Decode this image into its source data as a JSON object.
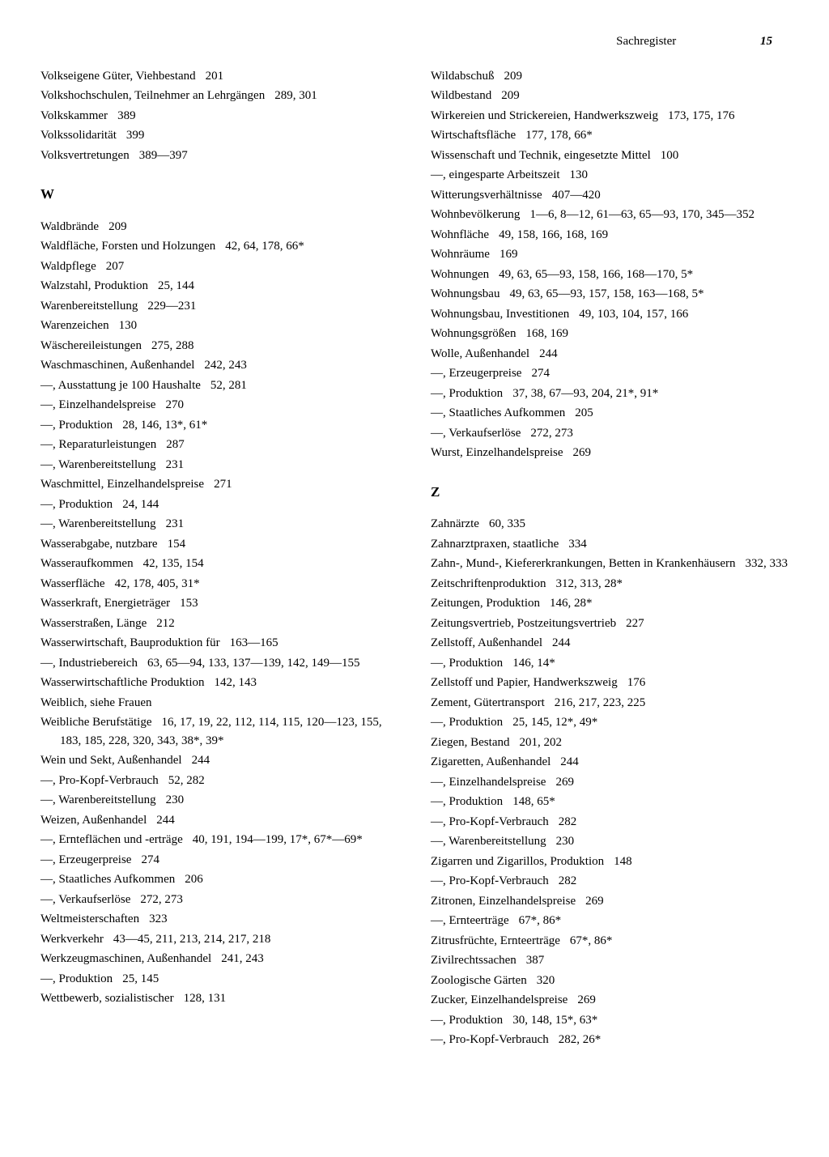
{
  "header": {
    "title": "Sachregister",
    "page": "15"
  },
  "left_column": {
    "top_entries": [
      {
        "text": "Volkseigene Güter, Viehbestand",
        "pages": "201"
      },
      {
        "text": "Volkshochschulen, Teilnehmer an Lehrgängen",
        "pages": "289, 301"
      },
      {
        "text": "Volkskammer",
        "pages": "389"
      },
      {
        "text": "Volkssolidarität",
        "pages": "399"
      },
      {
        "text": "Volksvertretungen",
        "pages": "389—397"
      }
    ],
    "section_w": "W",
    "w_entries": [
      {
        "text": "Waldbrände",
        "pages": "209"
      },
      {
        "text": "Waldfläche, Forsten und Holzungen",
        "pages": "42, 64, 178, 66*"
      },
      {
        "text": "Waldpflege",
        "pages": "207"
      },
      {
        "text": "Walzstahl, Produktion",
        "pages": "25, 144"
      },
      {
        "text": "Warenbereitstellung",
        "pages": "229—231"
      },
      {
        "text": "Warenzeichen",
        "pages": "130"
      },
      {
        "text": "Wäschereileistungen",
        "pages": "275, 288"
      },
      {
        "text": "Waschmaschinen, Außenhandel",
        "pages": "242, 243"
      },
      {
        "text": "—, Ausstattung je 100 Haushalte",
        "pages": "52, 281"
      },
      {
        "text": "—, Einzelhandelspreise",
        "pages": "270"
      },
      {
        "text": "—, Produktion",
        "pages": "28, 146, 13*, 61*"
      },
      {
        "text": "—, Reparaturleistungen",
        "pages": "287"
      },
      {
        "text": "—, Warenbereitstellung",
        "pages": "231"
      },
      {
        "text": "Waschmittel, Einzelhandelspreise",
        "pages": "271"
      },
      {
        "text": "—, Produktion",
        "pages": "24, 144"
      },
      {
        "text": "—, Warenbereitstellung",
        "pages": "231"
      },
      {
        "text": "Wasserabgabe, nutzbare",
        "pages": "154"
      },
      {
        "text": "Wasseraufkommen",
        "pages": "42, 135, 154"
      },
      {
        "text": "Wasserfläche",
        "pages": "42, 178, 405, 31*"
      },
      {
        "text": "Wasserkraft, Energieträger",
        "pages": "153"
      },
      {
        "text": "Wasserstraßen, Länge",
        "pages": "212"
      },
      {
        "text": "Wasserwirtschaft, Bauproduktion für",
        "pages": "163—165"
      },
      {
        "text": "—, Industriebereich",
        "pages": "63, 65—94, 133, 137—139, 142, 149—155"
      },
      {
        "text": "Wasserwirtschaftliche Produktion",
        "pages": "142, 143"
      },
      {
        "text": "Weiblich, siehe Frauen",
        "pages": ""
      },
      {
        "text": "Weibliche Berufstätige",
        "pages": "16, 17, 19, 22, 112, 114, 115, 120—123, 155, 183, 185, 228, 320, 343, 38*, 39*"
      },
      {
        "text": "Wein und Sekt, Außenhandel",
        "pages": "244"
      },
      {
        "text": "—, Pro-Kopf-Verbrauch",
        "pages": "52, 282"
      },
      {
        "text": "—, Warenbereitstellung",
        "pages": "230"
      },
      {
        "text": "Weizen, Außenhandel",
        "pages": "244"
      },
      {
        "text": "—, Ernteflächen und -erträge",
        "pages": "40, 191, 194—199, 17*, 67*—69*"
      },
      {
        "text": "—, Erzeugerpreise",
        "pages": "274"
      },
      {
        "text": "—, Staatliches Aufkommen",
        "pages": "206"
      },
      {
        "text": "—, Verkaufserlöse",
        "pages": "272, 273"
      },
      {
        "text": "Weltmeisterschaften",
        "pages": "323"
      },
      {
        "text": "Werkverkehr",
        "pages": "43—45, 211, 213, 214, 217, 218"
      },
      {
        "text": "Werkzeugmaschinen, Außenhandel",
        "pages": "241, 243"
      },
      {
        "text": "—, Produktion",
        "pages": "25, 145"
      },
      {
        "text": "Wettbewerb, sozialistischer",
        "pages": "128, 131"
      }
    ]
  },
  "right_column": {
    "top_entries": [
      {
        "text": "Wildabschuß",
        "pages": "209"
      },
      {
        "text": "Wildbestand",
        "pages": "209"
      },
      {
        "text": "Wirkereien und Strickereien, Handwerkszweig",
        "pages": "173, 175, 176"
      },
      {
        "text": "Wirtschaftsfläche",
        "pages": "177, 178, 66*"
      },
      {
        "text": "Wissenschaft und Technik, eingesetzte Mittel",
        "pages": "100"
      },
      {
        "text": "—, eingesparte Arbeitszeit",
        "pages": "130"
      },
      {
        "text": "Witterungsverhältnisse",
        "pages": "407—420"
      },
      {
        "text": "Wohnbevölkerung",
        "pages": "1—6, 8—12, 61—63, 65—93, 170, 345—352"
      },
      {
        "text": "Wohnfläche",
        "pages": "49, 158, 166, 168, 169"
      },
      {
        "text": "Wohnräume",
        "pages": "169"
      },
      {
        "text": "Wohnungen",
        "pages": "49, 63, 65—93, 158, 166, 168—170, 5*"
      },
      {
        "text": "Wohnungsbau",
        "pages": "49, 63, 65—93, 157, 158, 163—168, 5*"
      },
      {
        "text": "Wohnungsbau, Investitionen",
        "pages": "49, 103, 104, 157, 166"
      },
      {
        "text": "Wohnungsgrößen",
        "pages": "168, 169"
      },
      {
        "text": "Wolle, Außenhandel",
        "pages": "244"
      },
      {
        "text": "—, Erzeugerpreise",
        "pages": "274"
      },
      {
        "text": "—, Produktion",
        "pages": "37, 38, 67—93, 204, 21*, 91*"
      },
      {
        "text": "—, Staatliches Aufkommen",
        "pages": "205"
      },
      {
        "text": "—, Verkaufserlöse",
        "pages": "272, 273"
      },
      {
        "text": "Wurst, Einzelhandelspreise",
        "pages": "269"
      }
    ],
    "section_z": "Z",
    "z_entries": [
      {
        "text": "Zahnärzte",
        "pages": "60, 335"
      },
      {
        "text": "Zahnarztpraxen, staatliche",
        "pages": "334"
      },
      {
        "text": "Zahn-, Mund-, Kiefererkrankungen, Betten in Krankenhäusern",
        "pages": "332, 333"
      },
      {
        "text": "Zeitschriftenproduktion",
        "pages": "312, 313, 28*"
      },
      {
        "text": "Zeitungen, Produktion",
        "pages": "146, 28*"
      },
      {
        "text": "Zeitungsvertrieb, Postzeitungsvertrieb",
        "pages": "227"
      },
      {
        "text": "Zellstoff, Außenhandel",
        "pages": "244"
      },
      {
        "text": "—, Produktion",
        "pages": "146, 14*"
      },
      {
        "text": "Zellstoff und Papier, Handwerkszweig",
        "pages": "176"
      },
      {
        "text": "Zement, Gütertransport",
        "pages": "216, 217, 223, 225"
      },
      {
        "text": "—, Produktion",
        "pages": "25, 145, 12*, 49*"
      },
      {
        "text": "Ziegen, Bestand",
        "pages": "201, 202"
      },
      {
        "text": "Zigaretten, Außenhandel",
        "pages": "244"
      },
      {
        "text": "—, Einzelhandelspreise",
        "pages": "269"
      },
      {
        "text": "—, Produktion",
        "pages": "148, 65*"
      },
      {
        "text": "—, Pro-Kopf-Verbrauch",
        "pages": "282"
      },
      {
        "text": "—, Warenbereitstellung",
        "pages": "230"
      },
      {
        "text": "Zigarren und Zigarillos, Produktion",
        "pages": "148"
      },
      {
        "text": "—, Pro-Kopf-Verbrauch",
        "pages": "282"
      },
      {
        "text": "Zitronen, Einzelhandelspreise",
        "pages": "269"
      },
      {
        "text": "—, Ernteerträge",
        "pages": "67*, 86*"
      },
      {
        "text": "Zitrusfrüchte, Ernteerträge",
        "pages": "67*, 86*"
      },
      {
        "text": "Zivilrechtssachen",
        "pages": "387"
      },
      {
        "text": "Zoologische Gärten",
        "pages": "320"
      },
      {
        "text": "Zucker, Einzelhandelspreise",
        "pages": "269"
      },
      {
        "text": "—, Produktion",
        "pages": "30, 148, 15*, 63*"
      },
      {
        "text": "—, Pro-Kopf-Verbrauch",
        "pages": "282, 26*"
      }
    ]
  }
}
